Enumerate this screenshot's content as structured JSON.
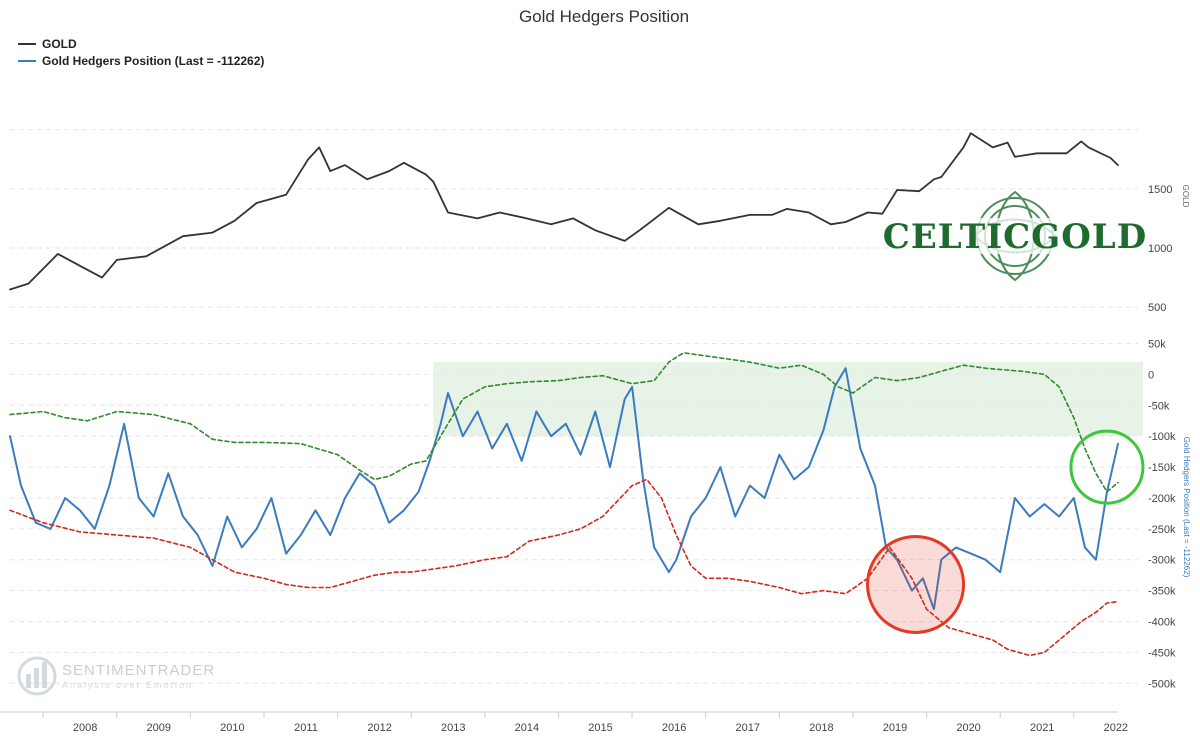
{
  "chart_data": {
    "type": "line",
    "title": "Gold Hedgers Position",
    "legend": {
      "position": "top-left",
      "items": [
        {
          "label": "GOLD",
          "color": "#333333"
        },
        {
          "label": "Gold Hedgers Position (Last = -112262)",
          "color": "#3b7bbf"
        }
      ]
    },
    "x_axis": {
      "type": "time",
      "range": [
        2007.55,
        2022.6
      ],
      "tick_labels": [
        "2008",
        "2009",
        "2010",
        "2011",
        "2012",
        "2013",
        "2014",
        "2015",
        "2016",
        "2017",
        "2018",
        "2019",
        "2020",
        "2021",
        "2022"
      ]
    },
    "y_axis_gold": {
      "title": "GOLD",
      "range": [
        350,
        2250
      ],
      "ticks": [
        500,
        1000,
        1500
      ],
      "tick_labels": [
        "500",
        "1000",
        "1500"
      ]
    },
    "y_axis_hedgers": {
      "title": "Gold Hedgers Position (Last = -112262)",
      "range": [
        -540000,
        80000
      ],
      "ticks": [
        50000,
        0,
        -50000,
        -100000,
        -150000,
        -200000,
        -250000,
        -300000,
        -350000,
        -400000,
        -450000,
        -500000
      ],
      "tick_labels": [
        "50k",
        "0",
        "-50k",
        "-100k",
        "-150k",
        "-200k",
        "-250k",
        "-300k",
        "-350k",
        "-400k",
        "-450k",
        "-500k"
      ]
    },
    "series": [
      {
        "name": "GOLD",
        "axis": "gold",
        "color": "#333333",
        "x": [
          2007.55,
          2007.8,
          2008.2,
          2008.5,
          2008.8,
          2009.0,
          2009.4,
          2009.9,
          2010.3,
          2010.6,
          2010.9,
          2011.3,
          2011.6,
          2011.75,
          2011.9,
          2012.1,
          2012.4,
          2012.7,
          2012.9,
          2013.2,
          2013.3,
          2013.5,
          2013.9,
          2014.2,
          2014.5,
          2014.9,
          2015.2,
          2015.5,
          2015.9,
          2016.1,
          2016.5,
          2016.9,
          2017.2,
          2017.6,
          2017.9,
          2018.1,
          2018.4,
          2018.7,
          2018.9,
          2019.2,
          2019.4,
          2019.6,
          2019.9,
          2020.1,
          2020.2,
          2020.5,
          2020.6,
          2020.9,
          2021.1,
          2021.2,
          2021.5,
          2021.9,
          2022.1,
          2022.2,
          2022.5,
          2022.6
        ],
        "values": [
          650,
          700,
          950,
          850,
          750,
          900,
          930,
          1100,
          1130,
          1230,
          1380,
          1450,
          1750,
          1850,
          1650,
          1700,
          1580,
          1650,
          1720,
          1620,
          1560,
          1300,
          1250,
          1300,
          1260,
          1200,
          1250,
          1150,
          1060,
          1150,
          1340,
          1200,
          1230,
          1280,
          1280,
          1330,
          1300,
          1200,
          1220,
          1300,
          1290,
          1490,
          1480,
          1580,
          1600,
          1850,
          1970,
          1850,
          1890,
          1770,
          1800,
          1800,
          1900,
          1850,
          1760,
          1700
        ]
      },
      {
        "name": "Gold Hedgers Position (Last = -112262)",
        "axis": "hedgers",
        "color": "#3b7bbf",
        "x": [
          2007.55,
          2007.7,
          2007.9,
          2008.1,
          2008.3,
          2008.5,
          2008.7,
          2008.9,
          2009.1,
          2009.3,
          2009.5,
          2009.7,
          2009.9,
          2010.1,
          2010.3,
          2010.5,
          2010.7,
          2010.9,
          2011.1,
          2011.3,
          2011.5,
          2011.7,
          2011.9,
          2012.1,
          2012.3,
          2012.5,
          2012.7,
          2012.9,
          2013.1,
          2013.25,
          2013.4,
          2013.5,
          2013.7,
          2013.9,
          2014.1,
          2014.3,
          2014.5,
          2014.7,
          2014.9,
          2015.1,
          2015.3,
          2015.5,
          2015.7,
          2015.9,
          2016.0,
          2016.15,
          2016.3,
          2016.5,
          2016.6,
          2016.8,
          2017.0,
          2017.2,
          2017.4,
          2017.6,
          2017.8,
          2018.0,
          2018.2,
          2018.4,
          2018.6,
          2018.75,
          2018.9,
          2019.1,
          2019.3,
          2019.45,
          2019.6,
          2019.8,
          2019.95,
          2020.1,
          2020.2,
          2020.4,
          2020.6,
          2020.8,
          2021.0,
          2021.2,
          2021.4,
          2021.6,
          2021.8,
          2022.0,
          2022.15,
          2022.3,
          2022.45,
          2022.6
        ],
        "values": [
          -100000,
          -180000,
          -240000,
          -250000,
          -200000,
          -220000,
          -250000,
          -180000,
          -80000,
          -200000,
          -230000,
          -160000,
          -230000,
          -260000,
          -310000,
          -230000,
          -280000,
          -250000,
          -200000,
          -290000,
          -260000,
          -220000,
          -260000,
          -200000,
          -160000,
          -180000,
          -240000,
          -220000,
          -190000,
          -140000,
          -80000,
          -30000,
          -100000,
          -60000,
          -120000,
          -80000,
          -140000,
          -60000,
          -100000,
          -80000,
          -130000,
          -60000,
          -150000,
          -40000,
          -20000,
          -170000,
          -280000,
          -320000,
          -300000,
          -230000,
          -200000,
          -150000,
          -230000,
          -180000,
          -200000,
          -130000,
          -170000,
          -150000,
          -90000,
          -20000,
          10000,
          -120000,
          -180000,
          -280000,
          -300000,
          -350000,
          -330000,
          -380000,
          -300000,
          -280000,
          -290000,
          -300000,
          -320000,
          -200000,
          -230000,
          -210000,
          -230000,
          -200000,
          -280000,
          -300000,
          -190000,
          -112262
        ]
      },
      {
        "name": "Upper band",
        "axis": "hedgers",
        "color": "#2e8b2e",
        "style": "dashed",
        "x": [
          2007.55,
          2008.0,
          2008.3,
          2008.6,
          2009.0,
          2009.5,
          2010.0,
          2010.3,
          2010.6,
          2011.0,
          2011.5,
          2012.0,
          2012.3,
          2012.5,
          2012.7,
          2013.0,
          2013.2,
          2013.3,
          2013.5,
          2013.7,
          2014.0,
          2014.3,
          2014.6,
          2015.0,
          2015.3,
          2015.6,
          2016.0,
          2016.3,
          2016.5,
          2016.7,
          2017.0,
          2017.3,
          2017.6,
          2018.0,
          2018.3,
          2018.6,
          2018.8,
          2019.0,
          2019.3,
          2019.6,
          2019.9,
          2020.2,
          2020.5,
          2020.8,
          2021.0,
          2021.3,
          2021.6,
          2021.8,
          2022.0,
          2022.15,
          2022.3,
          2022.45,
          2022.6
        ],
        "values": [
          -65000,
          -60000,
          -70000,
          -75000,
          -60000,
          -65000,
          -80000,
          -105000,
          -110000,
          -110000,
          -112000,
          -130000,
          -155000,
          -170000,
          -165000,
          -145000,
          -140000,
          -120000,
          -80000,
          -40000,
          -20000,
          -15000,
          -12000,
          -10000,
          -5000,
          -2000,
          -15000,
          -10000,
          20000,
          35000,
          30000,
          25000,
          20000,
          10000,
          15000,
          0,
          -20000,
          -30000,
          -5000,
          -10000,
          -5000,
          5000,
          15000,
          10000,
          8000,
          5000,
          0,
          -20000,
          -70000,
          -120000,
          -160000,
          -190000,
          -175000
        ]
      },
      {
        "name": "Lower band",
        "axis": "hedgers",
        "color": "#cc2a1e",
        "style": "dashed",
        "x": [
          2007.55,
          2008.0,
          2008.5,
          2009.0,
          2009.5,
          2010.0,
          2010.3,
          2010.6,
          2011.0,
          2011.3,
          2011.6,
          2011.9,
          2012.2,
          2012.5,
          2012.8,
          2013.0,
          2013.3,
          2013.6,
          2014.0,
          2014.3,
          2014.6,
          2015.0,
          2015.3,
          2015.6,
          2016.0,
          2016.2,
          2016.4,
          2016.6,
          2016.8,
          2017.0,
          2017.3,
          2017.6,
          2018.0,
          2018.3,
          2018.6,
          2018.9,
          2019.2,
          2019.5,
          2019.8,
          2020.0,
          2020.3,
          2020.6,
          2020.9,
          2021.1,
          2021.4,
          2021.6,
          2021.9,
          2022.1,
          2022.3,
          2022.45,
          2022.6
        ],
        "values": [
          -220000,
          -240000,
          -255000,
          -260000,
          -265000,
          -280000,
          -300000,
          -320000,
          -330000,
          -340000,
          -345000,
          -345000,
          -335000,
          -325000,
          -320000,
          -320000,
          -315000,
          -310000,
          -300000,
          -295000,
          -270000,
          -260000,
          -250000,
          -230000,
          -180000,
          -170000,
          -200000,
          -260000,
          -310000,
          -330000,
          -330000,
          -335000,
          -345000,
          -355000,
          -350000,
          -355000,
          -330000,
          -280000,
          -330000,
          -380000,
          -410000,
          -420000,
          -430000,
          -445000,
          -455000,
          -450000,
          -420000,
          -400000,
          -385000,
          -370000,
          -368000
        ]
      }
    ],
    "shaded_zone": {
      "x_start": 2013.3,
      "x_end": 2022.6,
      "y_top": 20000,
      "y_bottom": -100000,
      "color": "#e6f3e6"
    },
    "annotations": [
      {
        "type": "circle",
        "label": "red-circle",
        "x": 2019.85,
        "y": -340000,
        "color": "#e43a23"
      },
      {
        "type": "circle",
        "label": "green-circle",
        "x": 2022.45,
        "y": -150000,
        "color": "#3ec63e"
      }
    ],
    "logo": {
      "text": "CELTICGOLD"
    },
    "watermark": {
      "title": "SENTIMENTRADER",
      "subtitle": "Analysis over Emotion"
    }
  }
}
